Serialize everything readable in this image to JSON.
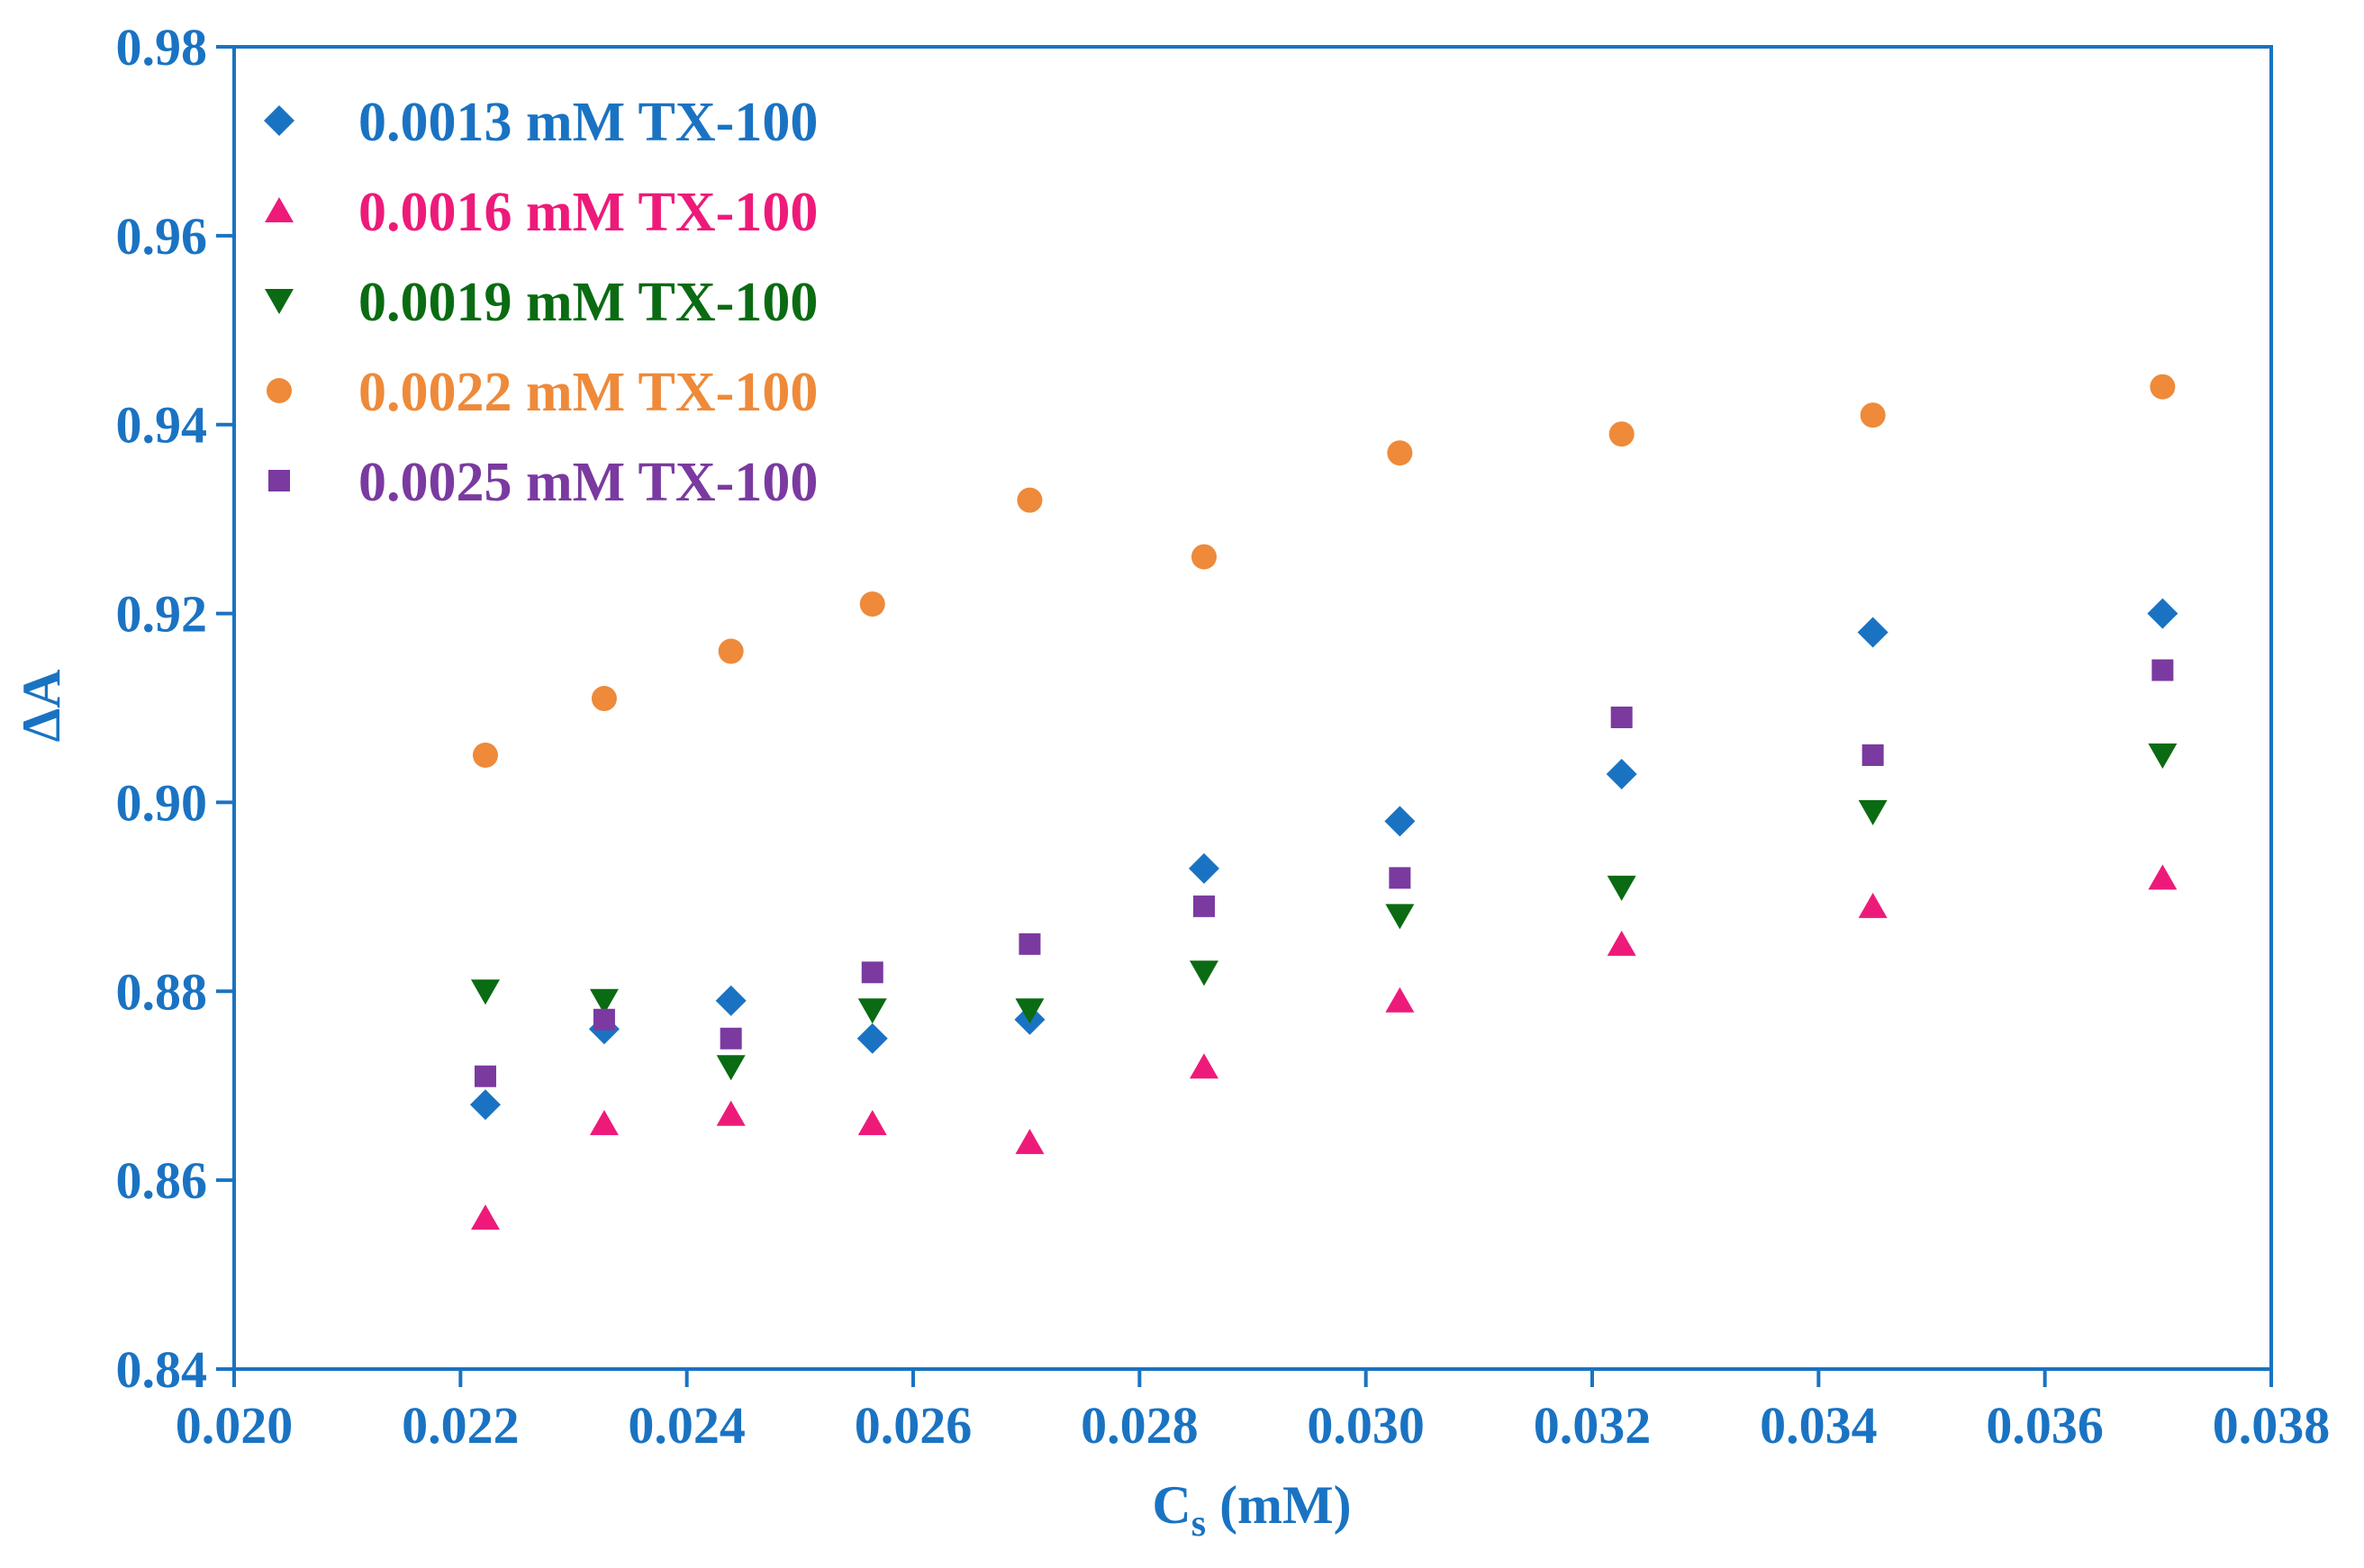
{
  "chart_data": {
    "type": "scatter",
    "title": "",
    "xlabel_main": "C",
    "xlabel_sub": "s",
    "xlabel_rest": " (mM)",
    "ylabel": "ΔA",
    "xlim": [
      0.02,
      0.038
    ],
    "ylim": [
      0.84,
      0.98
    ],
    "x_ticks": [
      "0.020",
      "0.022",
      "0.024",
      "0.026",
      "0.028",
      "0.030",
      "0.032",
      "0.034",
      "0.036",
      "0.038"
    ],
    "y_ticks": [
      "0.84",
      "0.86",
      "0.88",
      "0.90",
      "0.92",
      "0.94",
      "0.96",
      "0.98"
    ],
    "grid": false,
    "legend_position": "top-left",
    "axis_color": "#1a73c2",
    "x": [
      0.02222,
      0.02327,
      0.02439,
      0.02564,
      0.02703,
      0.02857,
      0.0303,
      0.03226,
      0.03448,
      0.03704
    ],
    "series": [
      {
        "name": "0.0013 mM TX-100",
        "marker": "diamond",
        "color": "#1a73c2",
        "values": [
          0.868,
          0.876,
          0.879,
          0.875,
          0.877,
          0.893,
          0.898,
          0.903,
          0.918,
          0.92
        ]
      },
      {
        "name": "0.0016 mM TX-100",
        "marker": "triangle-up",
        "color": "#ee1a7a",
        "values": [
          0.856,
          0.866,
          0.867,
          0.866,
          0.864,
          0.872,
          0.879,
          0.885,
          0.889,
          0.892
        ]
      },
      {
        "name": "0.0019 mM TX-100",
        "marker": "triangle-down",
        "color": "#0a6b12",
        "values": [
          0.88,
          0.879,
          0.872,
          0.878,
          0.878,
          0.882,
          0.888,
          0.891,
          0.899,
          0.905
        ]
      },
      {
        "name": "0.0022 mM TX-100",
        "marker": "circle",
        "color": "#ee8a3a",
        "values": [
          0.905,
          0.911,
          0.916,
          0.921,
          0.932,
          0.926,
          0.937,
          0.939,
          0.941,
          0.944
        ]
      },
      {
        "name": "0.0025 mM TX-100",
        "marker": "square",
        "color": "#7a3aa0",
        "values": [
          0.871,
          0.877,
          0.875,
          0.882,
          0.885,
          0.889,
          0.892,
          0.909,
          0.905,
          0.914
        ]
      }
    ]
  }
}
